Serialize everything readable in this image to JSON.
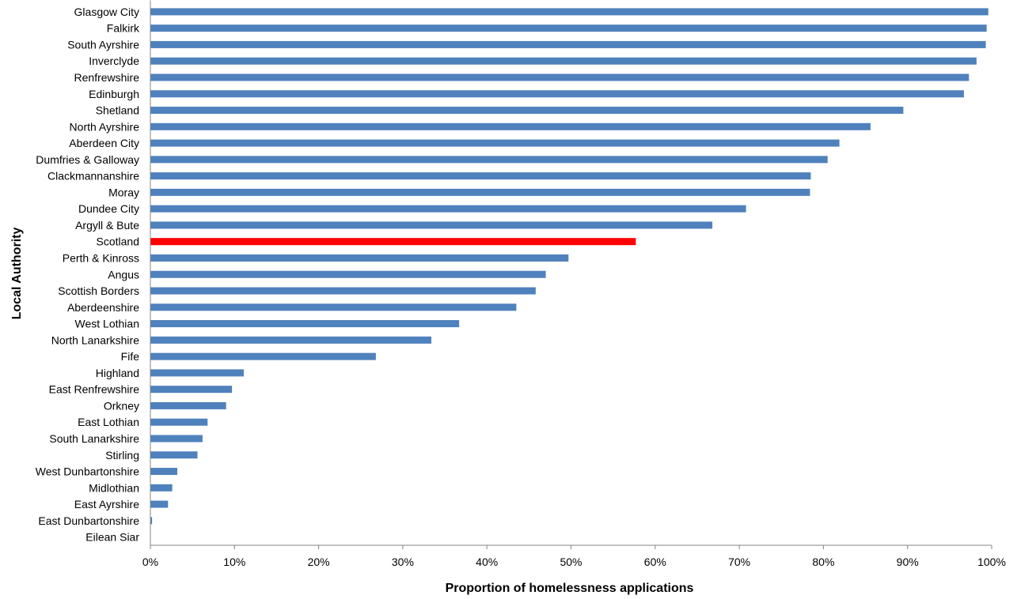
{
  "chart_data": {
    "type": "bar",
    "orientation": "horizontal",
    "title": "",
    "xlabel": "Proportion of homelessness applications",
    "ylabel": "Local Authority",
    "xlim": [
      0,
      100
    ],
    "x_ticks": [
      0,
      10,
      20,
      30,
      40,
      50,
      60,
      70,
      80,
      90,
      100
    ],
    "x_tick_labels": [
      "0%",
      "10%",
      "20%",
      "30%",
      "40%",
      "50%",
      "60%",
      "70%",
      "80%",
      "90%",
      "100%"
    ],
    "grid": false,
    "categories": [
      "Glasgow City",
      "Falkirk",
      "South Ayrshire",
      "Inverclyde",
      "Renfrewshire",
      "Edinburgh",
      "Shetland",
      "North Ayrshire",
      "Aberdeen City",
      "Dumfries & Galloway",
      "Clackmannanshire",
      "Moray",
      "Dundee City",
      "Argyll & Bute",
      "Scotland",
      "Perth & Kinross",
      "Angus",
      "Scottish Borders",
      "Aberdeenshire",
      "West Lothian",
      "North Lanarkshire",
      "Fife",
      "Highland",
      "East Renfrewshire",
      "Orkney",
      "East Lothian",
      "South Lanarkshire",
      "Stirling",
      "West Dunbartonshire",
      "Midlothian",
      "East Ayrshire",
      "East Dunbartonshire",
      "Eilean Siar"
    ],
    "values": [
      99.6,
      99.4,
      99.3,
      98.2,
      97.3,
      96.7,
      89.5,
      85.6,
      81.9,
      80.5,
      78.5,
      78.4,
      70.8,
      66.8,
      57.7,
      49.7,
      47.0,
      45.8,
      43.5,
      36.7,
      33.4,
      26.8,
      11.1,
      9.7,
      9.0,
      6.8,
      6.2,
      5.6,
      3.2,
      2.6,
      2.1,
      0.2,
      0.0
    ],
    "highlight": "Scotland",
    "colors": {
      "bar": "#4F81BD",
      "highlight": "#FF0000",
      "axis": "#868686"
    }
  }
}
